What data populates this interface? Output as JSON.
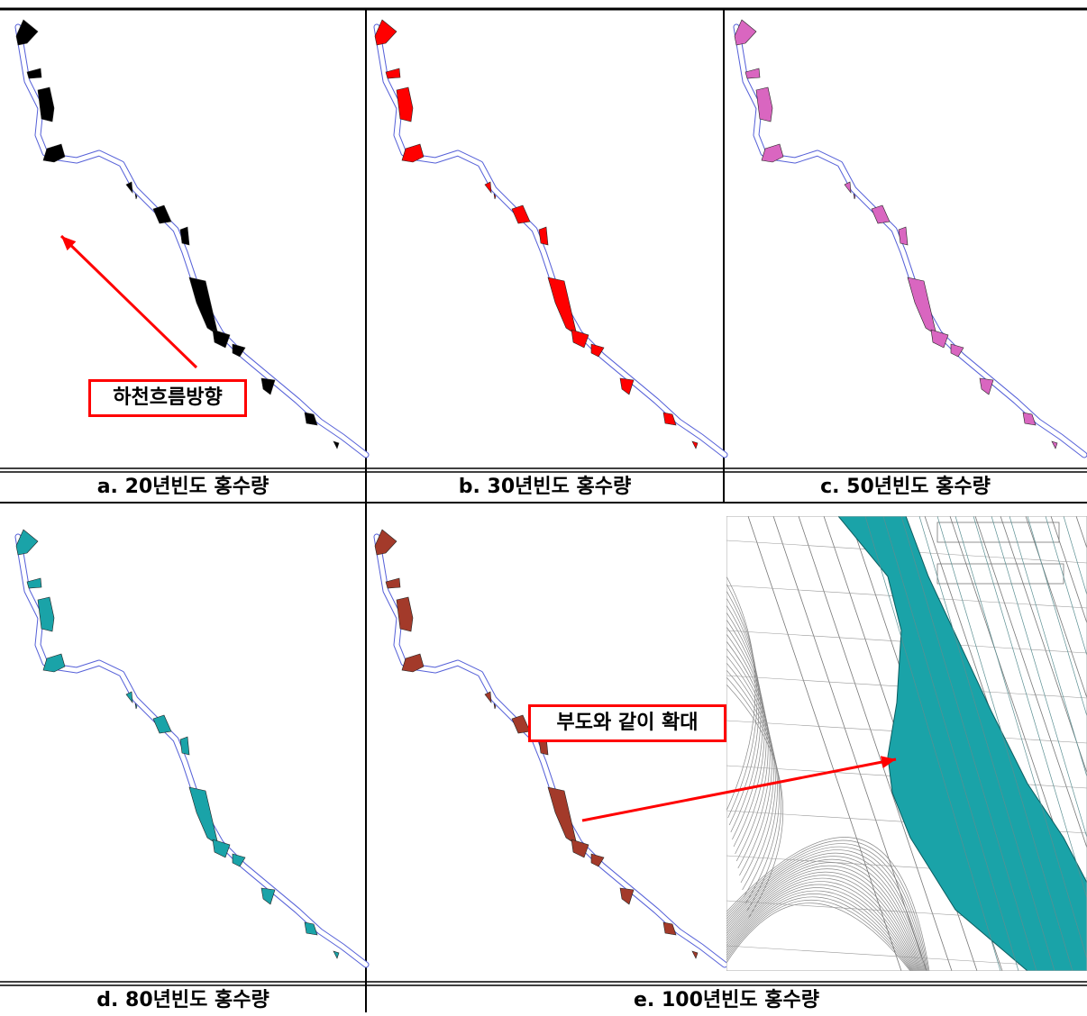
{
  "captions": {
    "a": "a. 20년빈도 홍수량",
    "b": "b. 30년빈도 홍수량",
    "c": "c. 50년빈도 홍수량",
    "d": "d. 80년빈도 홍수량",
    "e": "e. 100년빈도 홍수량"
  },
  "callouts": {
    "flow_direction": "하천흐름방향",
    "enlarge": "부도와 같이 확대"
  },
  "colors": {
    "a": "#000000",
    "b": "#ff0000",
    "c": "#d966c0",
    "d": "#1aa3a8",
    "e": "#a33a2a",
    "river": "#5560d8",
    "arrow": "#ff0000",
    "zoom_fill": "#1aa3a8"
  }
}
